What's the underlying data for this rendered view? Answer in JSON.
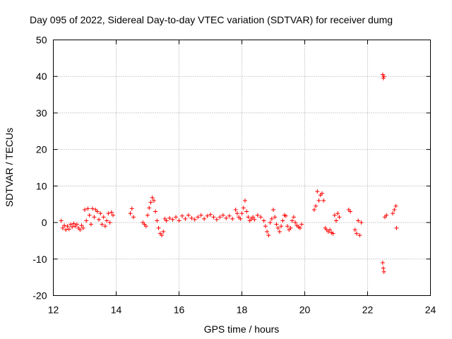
{
  "chart_data": {
    "type": "scatter",
    "title": "Day 095 of 2022, Sidereal Day-to-day VTEC variation (SDTVAR) for receiver dumg",
    "xlabel": "GPS time / hours",
    "ylabel": "SDTVAR / TECUs",
    "xlim": [
      12,
      24
    ],
    "ylim": [
      -20,
      50
    ],
    "xticks": [
      12,
      14,
      16,
      18,
      20,
      22,
      24
    ],
    "yticks": [
      -20,
      -10,
      0,
      10,
      20,
      30,
      40,
      50
    ],
    "grid": true,
    "marker": "+",
    "colors": {
      "series": "#ff0000",
      "grid": "#a0a0a0",
      "axis": "#000000"
    },
    "series": [
      {
        "name": "SDTVAR",
        "x": [
          12.25,
          12.3,
          12.35,
          12.4,
          12.45,
          12.5,
          12.55,
          12.6,
          12.65,
          12.7,
          12.75,
          12.8,
          12.85,
          12.9,
          12.95,
          13.0,
          13.05,
          13.1,
          13.15,
          13.2,
          13.25,
          13.3,
          13.35,
          13.4,
          13.45,
          13.5,
          13.55,
          13.6,
          13.65,
          13.7,
          13.75,
          13.8,
          13.85,
          13.9,
          14.45,
          14.5,
          14.55,
          14.85,
          14.9,
          14.95,
          15.0,
          15.05,
          15.1,
          15.15,
          15.2,
          15.25,
          15.3,
          15.35,
          15.4,
          15.45,
          15.5,
          15.55,
          15.6,
          15.7,
          15.8,
          15.9,
          16.0,
          16.1,
          16.2,
          16.3,
          16.4,
          16.5,
          16.6,
          16.7,
          16.8,
          16.9,
          17.0,
          17.1,
          17.2,
          17.3,
          17.4,
          17.5,
          17.6,
          17.7,
          17.8,
          17.85,
          17.9,
          17.95,
          18.0,
          18.05,
          18.1,
          18.15,
          18.2,
          18.25,
          18.3,
          18.35,
          18.4,
          18.5,
          18.6,
          18.7,
          18.75,
          18.8,
          18.85,
          18.9,
          18.95,
          19.0,
          19.05,
          19.1,
          19.15,
          19.2,
          19.25,
          19.3,
          19.35,
          19.4,
          19.45,
          19.5,
          19.55,
          19.6,
          19.65,
          19.7,
          19.75,
          19.8,
          19.85,
          19.9,
          20.3,
          20.35,
          20.4,
          20.45,
          20.5,
          20.55,
          20.6,
          20.65,
          20.7,
          20.75,
          20.8,
          20.85,
          20.9,
          20.95,
          21.0,
          21.05,
          21.1,
          21.4,
          21.45,
          21.6,
          21.65,
          21.7,
          21.75,
          21.8,
          22.48,
          22.5,
          22.52,
          22.48,
          22.5,
          22.52,
          22.55,
          22.6,
          22.8,
          22.85,
          22.9,
          22.92
        ],
        "values": [
          0.5,
          -1.5,
          -0.8,
          -2.0,
          -1.0,
          -1.8,
          -0.5,
          -1.2,
          -0.3,
          -1.0,
          -0.5,
          -1.5,
          -2.0,
          -0.8,
          -1.5,
          3.5,
          0.5,
          3.8,
          2.0,
          -0.5,
          3.8,
          1.5,
          3.5,
          3.0,
          0.8,
          2.5,
          -0.5,
          1.5,
          -1.0,
          0.5,
          2.5,
          0.0,
          2.8,
          2.0,
          2.5,
          3.8,
          1.5,
          0.0,
          -0.5,
          -1.0,
          2.0,
          4.0,
          5.5,
          6.8,
          6.0,
          3.0,
          0.5,
          -1.5,
          -3.0,
          -3.5,
          -2.5,
          1.0,
          0.5,
          1.2,
          0.8,
          1.5,
          0.5,
          1.8,
          1.0,
          2.0,
          1.2,
          0.8,
          1.5,
          2.0,
          1.0,
          1.8,
          2.2,
          1.5,
          0.8,
          1.5,
          2.0,
          1.2,
          1.8,
          1.0,
          3.5,
          2.5,
          1.5,
          1.0,
          2.5,
          4.0,
          6.0,
          3.0,
          1.5,
          0.5,
          1.0,
          1.5,
          0.8,
          2.0,
          1.5,
          0.5,
          -1.0,
          -2.5,
          -3.5,
          0.0,
          1.0,
          3.5,
          1.5,
          -0.5,
          -1.5,
          -2.5,
          -1.0,
          0.5,
          2.0,
          1.8,
          -1.0,
          -2.0,
          -1.5,
          0.5,
          1.5,
          0.0,
          -0.8,
          -1.2,
          -1.5,
          -0.5,
          3.5,
          4.5,
          8.5,
          6.0,
          7.5,
          8.0,
          6.0,
          -1.5,
          -2.0,
          -2.5,
          -2.0,
          -2.8,
          -3.0,
          2.0,
          0.5,
          2.5,
          1.5,
          3.5,
          3.0,
          -2.0,
          -3.0,
          0.5,
          -3.5,
          0.0,
          40.5,
          39.5,
          40.0,
          -11.0,
          -12.5,
          -13.5,
          1.5,
          2.0,
          2.5,
          3.5,
          4.5,
          -1.5
        ]
      }
    ]
  }
}
